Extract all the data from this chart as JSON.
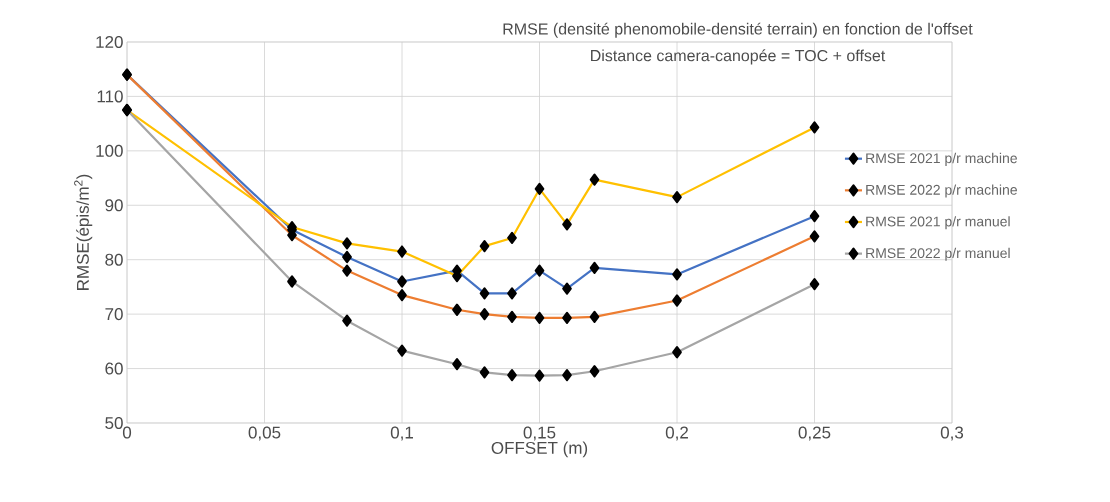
{
  "chart_data": {
    "type": "line",
    "title": "RMSE (densité phenomobile-densité terrain) en fonction de l'offset",
    "subtitle": "Distance camera-canopée = TOC + offset",
    "xlabel": "OFFSET (m)",
    "ylabel": "RMSE(épis/m$^{2}$)",
    "x": [
      0,
      0.06,
      0.08,
      0.1,
      0.12,
      0.13,
      0.14,
      0.15,
      0.16,
      0.17,
      0.2,
      0.25
    ],
    "series": [
      {
        "name": "RMSE 2021 p/r machine",
        "color": "#4472c4",
        "values": [
          114,
          85.5,
          80.5,
          76,
          78,
          73.8,
          73.8,
          78,
          74.7,
          78.5,
          77.3,
          88
        ]
      },
      {
        "name": "RMSE 2022 p/r machine",
        "color": "#ed7d31",
        "values": [
          114,
          84.5,
          78,
          73.5,
          70.8,
          70,
          69.5,
          69.3,
          69.3,
          69.5,
          72.5,
          84.3
        ]
      },
      {
        "name": "RMSE 2021 p/r manuel",
        "color": "#ffc000",
        "values": [
          107.5,
          86,
          83,
          81.5,
          77,
          82.5,
          84,
          93,
          86.5,
          94.7,
          91.5,
          104.3
        ]
      },
      {
        "name": "RMSE 2022 p/r manuel",
        "color": "#a5a5a5",
        "values": [
          107.5,
          76,
          68.8,
          63.3,
          60.8,
          59.3,
          58.8,
          58.7,
          58.8,
          59.5,
          63,
          75.5
        ]
      }
    ],
    "xlim": [
      0,
      0.3
    ],
    "ylim": [
      50,
      120
    ],
    "xticks": [
      0,
      {
        "value": 0.05,
        "label": "0,05"
      },
      {
        "value": 0.1,
        "label": "0,1"
      },
      {
        "value": 0.15,
        "label": "0,15"
      },
      {
        "value": 0.2,
        "label": "0,2"
      },
      {
        "value": 0.25,
        "label": "0,25"
      },
      {
        "value": 0.3,
        "label": "0,3"
      }
    ],
    "yticks": [
      50,
      60,
      70,
      80,
      90,
      100,
      110,
      120
    ],
    "grid": true,
    "legend": "right",
    "marker": "diamond",
    "line_style": "solid"
  }
}
